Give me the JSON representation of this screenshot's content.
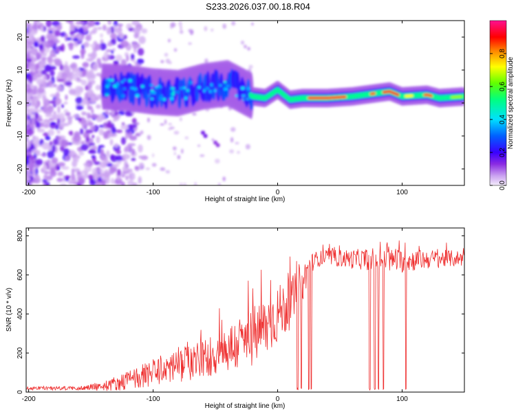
{
  "chart_data": [
    {
      "type": "heatmap",
      "title": "S233.2026.037.00.18.R04",
      "xlabel": "Height of straight line (km)",
      "ylabel": "Frequency (Hz)",
      "xlim": [
        -202,
        150
      ],
      "ylim": [
        -25,
        25
      ],
      "xticks": [
        -200,
        -100,
        0,
        100
      ],
      "yticks": [
        -20,
        -10,
        0,
        10,
        20
      ],
      "colorbar": {
        "label": "Normalized spectral amplitude",
        "range": [
          0,
          1
        ],
        "ticks": [
          "0.0",
          "0.2",
          "0.4",
          "0.6",
          "0.8"
        ],
        "tick_values": [
          0.0,
          0.2,
          0.4,
          0.6,
          0.8
        ]
      },
      "ridge": {
        "description_points_km_hz": [
          [
            -140,
            5
          ],
          [
            -120,
            4.5
          ],
          [
            -100,
            3.5
          ],
          [
            -80,
            3
          ],
          [
            -60,
            5
          ],
          [
            -40,
            6
          ],
          [
            -25,
            3
          ],
          [
            -20,
            2
          ],
          [
            -10,
            1.5
          ],
          [
            0,
            4
          ],
          [
            10,
            1
          ],
          [
            20,
            1.5
          ],
          [
            40,
            1.5
          ],
          [
            60,
            2
          ],
          [
            80,
            3
          ],
          [
            90,
            3.5
          ],
          [
            100,
            2
          ],
          [
            120,
            2.5
          ],
          [
            130,
            1.5
          ],
          [
            150,
            2
          ]
        ]
      }
    },
    {
      "type": "line",
      "xlabel": "Height of straight line (km)",
      "ylabel": "SNR (10 * v/v)",
      "xlim": [
        -202,
        150
      ],
      "ylim": [
        0,
        840
      ],
      "xticks": [
        -200,
        -100,
        0,
        100
      ],
      "yticks": [
        0,
        200,
        400,
        600,
        800
      ],
      "series": [
        {
          "name": "SNR",
          "color": "#ee2a2a",
          "envelope_x": [
            -202,
            -160,
            -140,
            -120,
            -100,
            -80,
            -60,
            -40,
            -20,
            -10,
            0,
            10,
            20,
            25,
            30,
            40,
            60,
            80,
            100,
            120,
            150
          ],
          "envelope_mean": [
            20,
            20,
            30,
            60,
            100,
            140,
            170,
            220,
            280,
            330,
            400,
            450,
            560,
            640,
            680,
            690,
            680,
            680,
            670,
            680,
            685
          ],
          "envelope_spread": [
            10,
            10,
            25,
            50,
            70,
            90,
            100,
            130,
            160,
            160,
            150,
            130,
            100,
            60,
            40,
            40,
            50,
            60,
            60,
            50,
            40
          ],
          "dropouts_x": [
            16,
            19,
            25,
            27,
            74,
            78,
            81,
            85,
            103
          ]
        }
      ]
    }
  ]
}
